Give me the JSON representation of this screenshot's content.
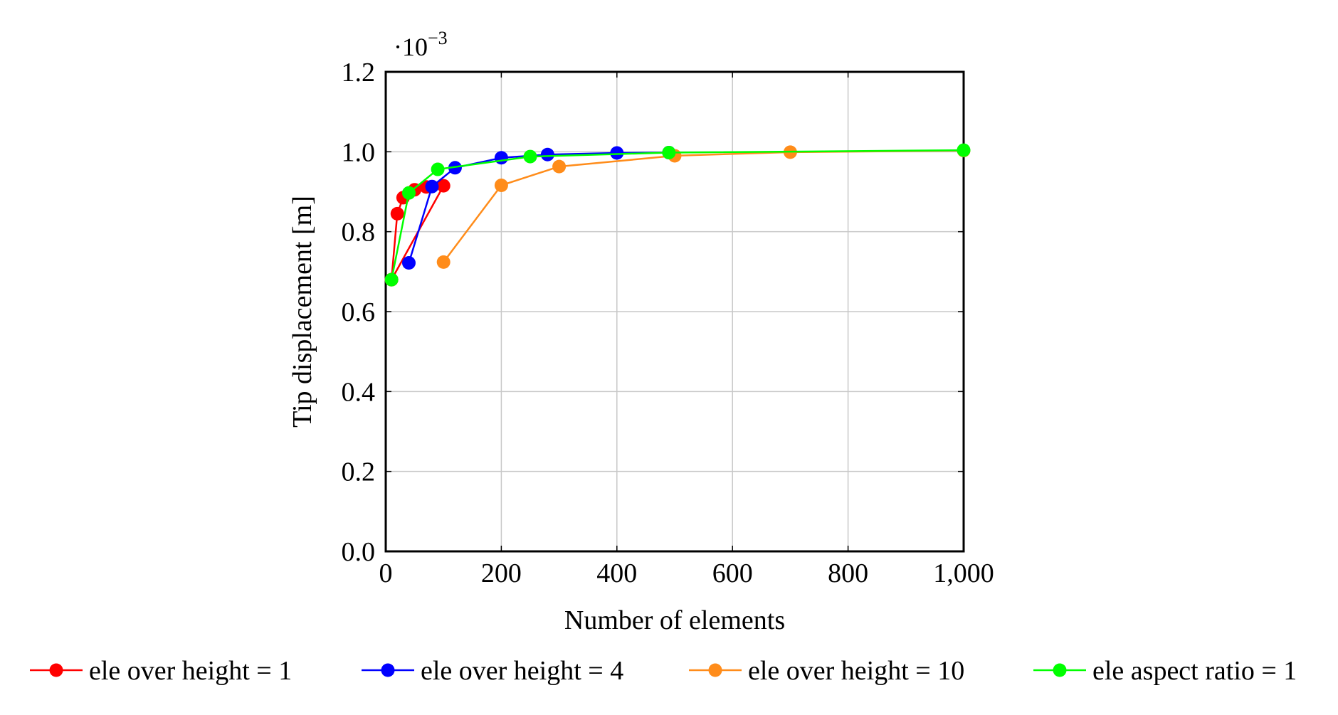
{
  "chart_data": {
    "type": "line",
    "title": "",
    "xlabel": "Number of elements",
    "ylabel": "Tip displacement [m]",
    "y_scale_label": {
      "base": "·10",
      "exponent": "−3"
    },
    "xlim": [
      0,
      1000
    ],
    "ylim": [
      0.0,
      1.2
    ],
    "x_ticks": [
      {
        "value": 0,
        "label": "0"
      },
      {
        "value": 200,
        "label": "200"
      },
      {
        "value": 400,
        "label": "400"
      },
      {
        "value": 600,
        "label": "600"
      },
      {
        "value": 800,
        "label": "800"
      },
      {
        "value": 1000,
        "label": "1,000"
      }
    ],
    "y_ticks": [
      {
        "value": 0.0,
        "label": "0.0"
      },
      {
        "value": 0.2,
        "label": "0.2"
      },
      {
        "value": 0.4,
        "label": "0.4"
      },
      {
        "value": 0.6,
        "label": "0.6"
      },
      {
        "value": 0.8,
        "label": "0.8"
      },
      {
        "value": 1.0,
        "label": "1.0"
      },
      {
        "value": 1.2,
        "label": "1.2"
      }
    ],
    "grid": true,
    "legend_position": "bottom",
    "series": [
      {
        "name": "ele over height = 1",
        "color": "#ff0000",
        "points": [
          [
            10,
            0.68
          ],
          [
            20,
            0.845
          ],
          [
            30,
            0.885
          ],
          [
            50,
            0.905
          ],
          [
            70,
            0.912
          ],
          [
            100,
            0.915
          ],
          [
            10,
            0.68
          ]
        ]
      },
      {
        "name": "ele over height = 4",
        "color": "#0000ff",
        "points": [
          [
            40,
            0.722
          ],
          [
            80,
            0.913
          ],
          [
            120,
            0.96
          ],
          [
            200,
            0.985
          ],
          [
            280,
            0.993
          ],
          [
            400,
            0.997
          ],
          [
            490,
            0.998
          ]
        ]
      },
      {
        "name": "ele over height = 10",
        "color": "#ff8c1a",
        "points": [
          [
            100,
            0.724
          ],
          [
            200,
            0.916
          ],
          [
            300,
            0.963
          ],
          [
            500,
            0.99
          ],
          [
            700,
            0.999
          ],
          [
            1000,
            1.003
          ]
        ]
      },
      {
        "name": "ele aspect ratio = 1",
        "color": "#00ff00",
        "points": [
          [
            10,
            0.68
          ],
          [
            40,
            0.897
          ],
          [
            90,
            0.956
          ],
          [
            250,
            0.988
          ],
          [
            490,
            0.998
          ],
          [
            1000,
            1.004
          ]
        ]
      }
    ]
  }
}
